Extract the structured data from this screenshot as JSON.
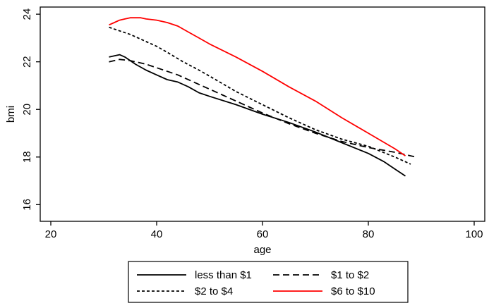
{
  "chart_data": {
    "type": "line",
    "title": "",
    "xlabel": "age",
    "ylabel": "bmi",
    "xlim": [
      18,
      102
    ],
    "ylim": [
      15.3,
      24.3
    ],
    "xticks": [
      20,
      40,
      60,
      80,
      100
    ],
    "yticks": [
      16,
      18,
      20,
      22,
      24
    ],
    "grid": false,
    "legend_position": "bottom",
    "series": [
      {
        "name": "less than $1",
        "color": "#000000",
        "dash": "solid",
        "x": [
          31,
          32,
          33,
          34,
          35,
          36,
          38,
          40,
          42,
          44,
          46,
          48,
          50,
          55,
          60,
          65,
          70,
          75,
          80,
          83,
          85,
          87
        ],
        "y": [
          22.2,
          22.25,
          22.3,
          22.2,
          22.05,
          21.9,
          21.65,
          21.45,
          21.25,
          21.15,
          20.95,
          20.7,
          20.55,
          20.2,
          19.8,
          19.45,
          19.05,
          18.6,
          18.15,
          17.8,
          17.5,
          17.2
        ]
      },
      {
        "name": "$1 to $2",
        "color": "#000000",
        "dash": "long",
        "x": [
          31,
          32,
          33,
          35,
          38,
          40,
          44,
          48,
          50,
          55,
          60,
          65,
          70,
          75,
          80,
          85,
          88,
          89
        ],
        "y": [
          22.0,
          22.05,
          22.1,
          22.05,
          21.9,
          21.75,
          21.45,
          21.05,
          20.85,
          20.35,
          19.85,
          19.4,
          19.0,
          18.65,
          18.4,
          18.2,
          18.05,
          18.0
        ]
      },
      {
        "name": "$2 to $4",
        "color": "#000000",
        "dash": "short",
        "x": [
          31,
          33,
          35,
          38,
          40,
          42,
          45,
          48,
          50,
          55,
          60,
          65,
          70,
          75,
          80,
          85,
          88
        ],
        "y": [
          23.45,
          23.3,
          23.15,
          22.85,
          22.65,
          22.4,
          22.0,
          21.65,
          21.4,
          20.75,
          20.2,
          19.65,
          19.15,
          18.75,
          18.45,
          18.0,
          17.7
        ]
      },
      {
        "name": "$6 to $10",
        "color": "#ff0000",
        "dash": "solid",
        "x": [
          31,
          32,
          33,
          34,
          35,
          36,
          37,
          38,
          40,
          42,
          44,
          46,
          48,
          50,
          55,
          60,
          65,
          70,
          75,
          80,
          85,
          87
        ],
        "y": [
          23.55,
          23.65,
          23.75,
          23.8,
          23.85,
          23.85,
          23.85,
          23.8,
          23.75,
          23.65,
          23.5,
          23.25,
          23.0,
          22.75,
          22.2,
          21.6,
          20.95,
          20.35,
          19.65,
          19.0,
          18.35,
          18.05
        ]
      }
    ]
  }
}
